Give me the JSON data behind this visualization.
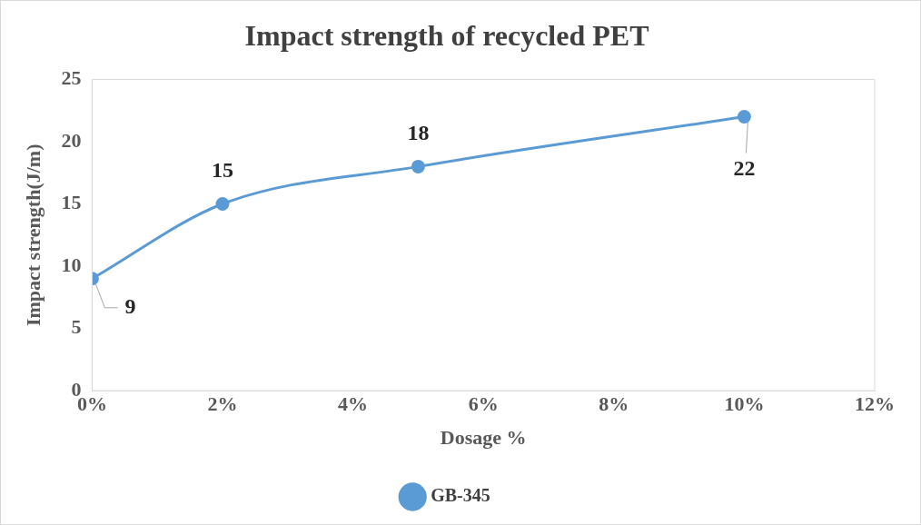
{
  "chart_data": {
    "type": "line",
    "title": "Impact strength of recycled PET",
    "xlabel": "Dosage %",
    "ylabel": "Impact strength(J/m)",
    "x": [
      0,
      2,
      5,
      10
    ],
    "series": [
      {
        "name": "GB-345",
        "color": "#5b9bd5",
        "values": [
          9,
          15,
          18,
          22
        ]
      }
    ],
    "xlim": [
      0,
      12
    ],
    "xticks": [
      {
        "value": 0,
        "label": "0%"
      },
      {
        "value": 2,
        "label": "2%"
      },
      {
        "value": 4,
        "label": "4%"
      },
      {
        "value": 6,
        "label": "6%"
      },
      {
        "value": 8,
        "label": "8%"
      },
      {
        "value": 10,
        "label": "10%"
      },
      {
        "value": 12,
        "label": "12%"
      }
    ],
    "ylim": [
      0,
      25
    ],
    "yticks": [
      0,
      5,
      10,
      15,
      20,
      25
    ],
    "grid": false,
    "legend": "bottom",
    "marker": "circle",
    "line_style": "solid",
    "data_labels": true
  }
}
